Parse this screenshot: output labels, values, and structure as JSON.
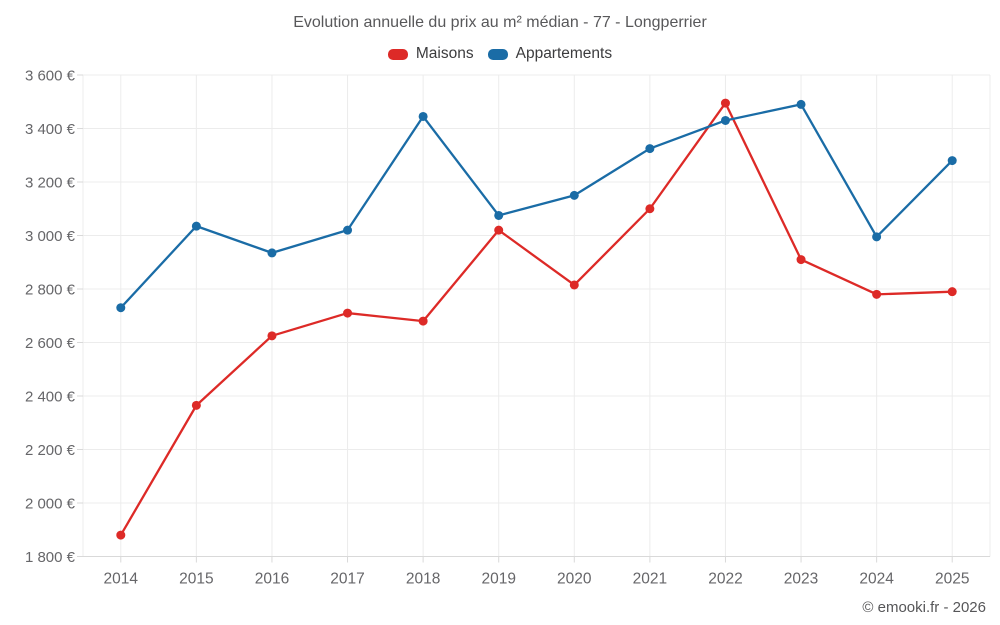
{
  "header": {
    "title": "Evolution annuelle du prix au m² médian - 77 - Longperrier"
  },
  "chart_data": {
    "type": "line",
    "title": "Evolution annuelle du prix au m² médian - 77 - Longperrier",
    "categories": [
      "2014",
      "2015",
      "2016",
      "2017",
      "2018",
      "2019",
      "2020",
      "2021",
      "2022",
      "2023",
      "2024",
      "2025"
    ],
    "series": [
      {
        "name": "Maisons",
        "color": "#dd2a27",
        "values": [
          1880,
          2365,
          2625,
          2710,
          2680,
          3020,
          2815,
          3100,
          3495,
          2910,
          2780,
          2790
        ]
      },
      {
        "name": "Appartements",
        "color": "#1a6ca6",
        "values": [
          2730,
          3035,
          2935,
          3020,
          3445,
          3075,
          3150,
          3325,
          3430,
          3490,
          2995,
          3280
        ]
      }
    ],
    "ylim": [
      1800,
      3600
    ],
    "ytick_step": 200,
    "ytick_suffix": " €",
    "grid": true,
    "legend_position": "top-center",
    "marker": "circle"
  },
  "footer": {
    "text": "© emooki.fr - 2026"
  },
  "colors": {
    "background": "#ffffff",
    "grid": "#ececec",
    "axis_line": "#d9d9d9",
    "axis_label": "#666669",
    "title_text": "#58585a",
    "legend_text": "#3c3c3e",
    "footer_text": "#565658"
  }
}
